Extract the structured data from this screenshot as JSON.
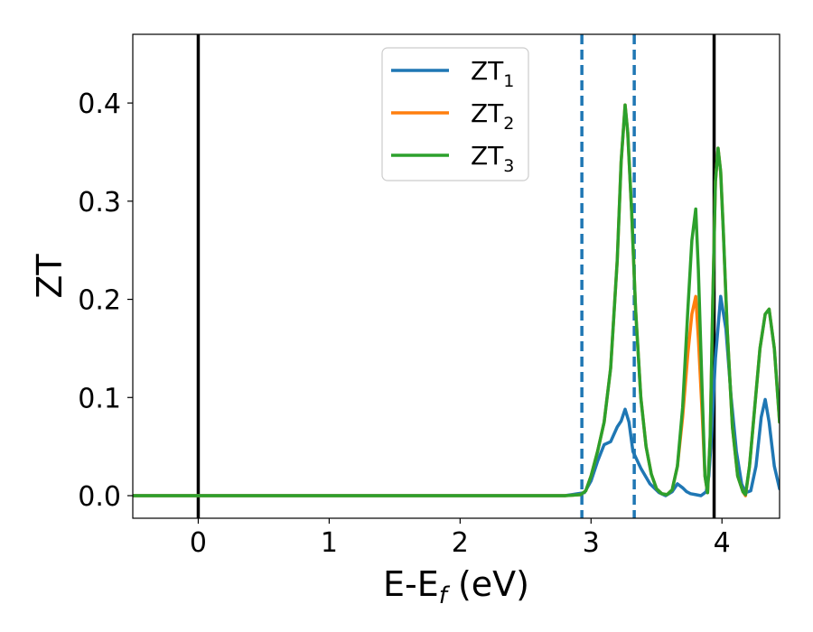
{
  "chart_data": {
    "type": "line",
    "xlabel": "E-E",
    "xlabel_sub": "f",
    "xlabel_unit": " (eV)",
    "ylabel": "ZT",
    "xlim": [
      -0.5,
      4.44
    ],
    "ylim": [
      -0.023,
      0.47
    ],
    "xticks": [
      0,
      1,
      2,
      3,
      4
    ],
    "xtick_labels": [
      "0",
      "1",
      "2",
      "3",
      "4"
    ],
    "yticks": [
      0.0,
      0.1,
      0.2,
      0.3,
      0.4
    ],
    "ytick_labels": [
      "0.0",
      "0.1",
      "0.2",
      "0.3",
      "0.4"
    ],
    "grid": false,
    "legend_position": "upper center",
    "vertical_lines": [
      {
        "x": 0.0,
        "style": "solid",
        "color": "#000000"
      },
      {
        "x": 3.94,
        "style": "solid",
        "color": "#000000"
      },
      {
        "x": 2.93,
        "style": "dashed",
        "color": "#1f77b4"
      },
      {
        "x": 3.33,
        "style": "dashed",
        "color": "#1f77b4"
      }
    ],
    "series": [
      {
        "name": "ZT",
        "subscript": "1",
        "color": "#1f77b4",
        "x": [
          -0.5,
          2.8,
          2.95,
          3.0,
          3.05,
          3.1,
          3.15,
          3.2,
          3.23,
          3.26,
          3.29,
          3.32,
          3.38,
          3.45,
          3.52,
          3.57,
          3.62,
          3.66,
          3.7,
          3.73,
          3.76,
          3.8,
          3.84,
          3.88,
          3.9,
          3.92,
          3.95,
          3.99,
          4.03,
          4.07,
          4.11,
          4.15,
          4.18,
          4.22,
          4.26,
          4.3,
          4.33,
          4.36,
          4.4,
          4.44
        ],
        "y": [
          0.0,
          0.0,
          0.003,
          0.015,
          0.035,
          0.052,
          0.055,
          0.07,
          0.076,
          0.088,
          0.075,
          0.045,
          0.028,
          0.012,
          0.003,
          0.0,
          0.004,
          0.012,
          0.008,
          0.004,
          0.002,
          0.001,
          0.0,
          0.004,
          0.02,
          0.06,
          0.14,
          0.203,
          0.17,
          0.1,
          0.045,
          0.012,
          0.003,
          0.005,
          0.03,
          0.08,
          0.098,
          0.075,
          0.03,
          0.007
        ]
      },
      {
        "name": "ZT",
        "subscript": "2",
        "color": "#ff7f0e",
        "x": [
          -0.5,
          2.8,
          2.92,
          2.96,
          3.0,
          3.05,
          3.1,
          3.15,
          3.2,
          3.23,
          3.26,
          3.28,
          3.31,
          3.34,
          3.38,
          3.42,
          3.46,
          3.5,
          3.54,
          3.58,
          3.62,
          3.66,
          3.7,
          3.74,
          3.77,
          3.8,
          3.82,
          3.85,
          3.87,
          3.89,
          3.91,
          3.93,
          3.95,
          3.97,
          3.99,
          4.01,
          4.04,
          4.08,
          4.12,
          4.16,
          4.18,
          4.21,
          4.25,
          4.29,
          4.33,
          4.36,
          4.4,
          4.44
        ],
        "y": [
          0.0,
          0.0,
          0.001,
          0.005,
          0.02,
          0.045,
          0.075,
          0.13,
          0.24,
          0.34,
          0.398,
          0.37,
          0.29,
          0.19,
          0.1,
          0.05,
          0.022,
          0.007,
          0.002,
          0.001,
          0.006,
          0.03,
          0.08,
          0.145,
          0.185,
          0.203,
          0.16,
          0.08,
          0.02,
          0.003,
          0.06,
          0.2,
          0.32,
          0.354,
          0.33,
          0.27,
          0.17,
          0.07,
          0.02,
          0.004,
          0.0,
          0.03,
          0.09,
          0.15,
          0.185,
          0.19,
          0.15,
          0.075
        ]
      },
      {
        "name": "ZT",
        "subscript": "3",
        "color": "#2ca02c",
        "x": [
          -0.5,
          2.8,
          2.92,
          2.96,
          3.0,
          3.05,
          3.1,
          3.15,
          3.2,
          3.23,
          3.26,
          3.28,
          3.31,
          3.34,
          3.38,
          3.42,
          3.46,
          3.5,
          3.54,
          3.58,
          3.62,
          3.66,
          3.7,
          3.74,
          3.77,
          3.8,
          3.82,
          3.85,
          3.87,
          3.89,
          3.91,
          3.93,
          3.95,
          3.97,
          3.99,
          4.01,
          4.04,
          4.08,
          4.12,
          4.16,
          4.18,
          4.21,
          4.25,
          4.29,
          4.33,
          4.36,
          4.4,
          4.44
        ],
        "y": [
          0.0,
          0.0,
          0.001,
          0.005,
          0.02,
          0.045,
          0.075,
          0.13,
          0.24,
          0.34,
          0.398,
          0.37,
          0.29,
          0.19,
          0.1,
          0.05,
          0.022,
          0.007,
          0.002,
          0.001,
          0.006,
          0.03,
          0.09,
          0.19,
          0.26,
          0.292,
          0.23,
          0.1,
          0.02,
          0.003,
          0.06,
          0.2,
          0.32,
          0.354,
          0.33,
          0.27,
          0.17,
          0.07,
          0.02,
          0.004,
          0.001,
          0.03,
          0.09,
          0.15,
          0.185,
          0.19,
          0.15,
          0.075
        ]
      }
    ]
  }
}
